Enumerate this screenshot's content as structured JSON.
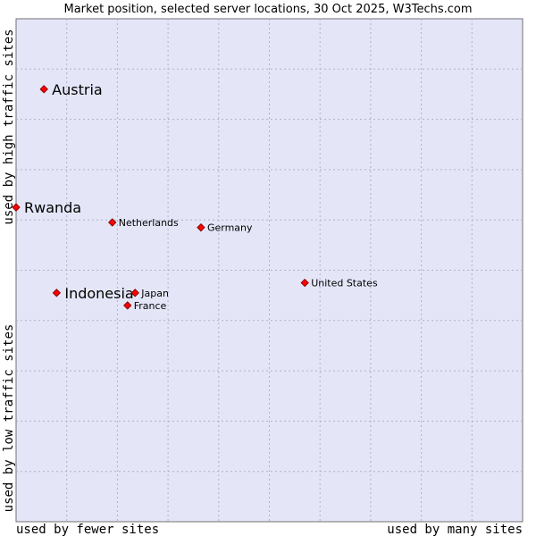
{
  "chart_data": {
    "type": "scatter",
    "title": "Market position, selected server locations, 30 Oct 2025, W3Techs.com",
    "xlabel_low": "used by fewer sites",
    "xlabel_high": "used by many sites",
    "ylabel_low": "used by low traffic sites",
    "ylabel_high": "used by high traffic sites",
    "xlim": [
      0,
      100
    ],
    "ylim": [
      0,
      100
    ],
    "grid": true,
    "colors": {
      "plot_background": "#e4e6f8",
      "grid": "#b0b0c8",
      "point_fill": "#ff0000",
      "point_stroke": "#8b0000"
    },
    "points": [
      {
        "name": "Austria",
        "x": 5.5,
        "y": 86,
        "emphasis": true
      },
      {
        "name": "Rwanda",
        "x": 0,
        "y": 62.5,
        "emphasis": true
      },
      {
        "name": "Netherlands",
        "x": 19,
        "y": 59.5,
        "emphasis": false
      },
      {
        "name": "Germany",
        "x": 36.5,
        "y": 58.5,
        "emphasis": false
      },
      {
        "name": "United States",
        "x": 57,
        "y": 47.5,
        "emphasis": false
      },
      {
        "name": "Indonesia",
        "x": 8,
        "y": 45.5,
        "emphasis": true
      },
      {
        "name": "Japan",
        "x": 23.5,
        "y": 45.5,
        "emphasis": false
      },
      {
        "name": "France",
        "x": 22,
        "y": 43,
        "emphasis": false
      }
    ]
  }
}
